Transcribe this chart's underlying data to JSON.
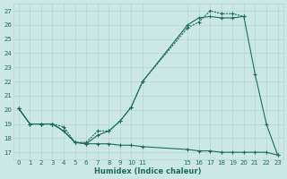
{
  "xlabel": "Humidex (Indice chaleur)",
  "bg_color": "#cce8e4",
  "line_color": "#1a6b5e",
  "grid_color": "#b8d4d0",
  "xlim": [
    -0.5,
    23.5
  ],
  "ylim": [
    16.5,
    27.5
  ],
  "xticks": [
    0,
    1,
    2,
    3,
    4,
    5,
    6,
    7,
    8,
    9,
    10,
    11,
    15,
    16,
    17,
    18,
    19,
    20,
    21,
    22,
    23
  ],
  "yticks": [
    17,
    18,
    19,
    20,
    21,
    22,
    23,
    24,
    25,
    26,
    27
  ],
  "series1_x": [
    0,
    1,
    2,
    3,
    4,
    5,
    6,
    7,
    8,
    9,
    10,
    11,
    15,
    16,
    17,
    18,
    19,
    20,
    21,
    22,
    23
  ],
  "series1_y": [
    20.1,
    19.0,
    19.0,
    19.0,
    18.5,
    17.7,
    17.6,
    18.2,
    18.5,
    19.2,
    20.2,
    22.0,
    26.0,
    26.5,
    26.6,
    26.5,
    26.5,
    26.6,
    22.5,
    19.0,
    16.8
  ],
  "series2_x": [
    0,
    1,
    2,
    3,
    4,
    5,
    6,
    7,
    8,
    9,
    10,
    11,
    15,
    16,
    17,
    18,
    19,
    20
  ],
  "series2_y": [
    20.1,
    19.0,
    19.0,
    19.0,
    18.8,
    17.7,
    17.7,
    18.5,
    18.5,
    19.2,
    20.2,
    22.0,
    25.8,
    26.2,
    27.0,
    26.8,
    26.8,
    26.6
  ],
  "series3_x": [
    0,
    1,
    2,
    3,
    4,
    5,
    6,
    7,
    8,
    9,
    10,
    11,
    15,
    16,
    17,
    18,
    19,
    20,
    21,
    22,
    23
  ],
  "series3_y": [
    20.1,
    19.0,
    19.0,
    19.0,
    18.5,
    17.7,
    17.6,
    17.6,
    17.6,
    17.5,
    17.5,
    17.4,
    17.2,
    17.1,
    17.1,
    17.0,
    17.0,
    17.0,
    17.0,
    17.0,
    16.8
  ]
}
